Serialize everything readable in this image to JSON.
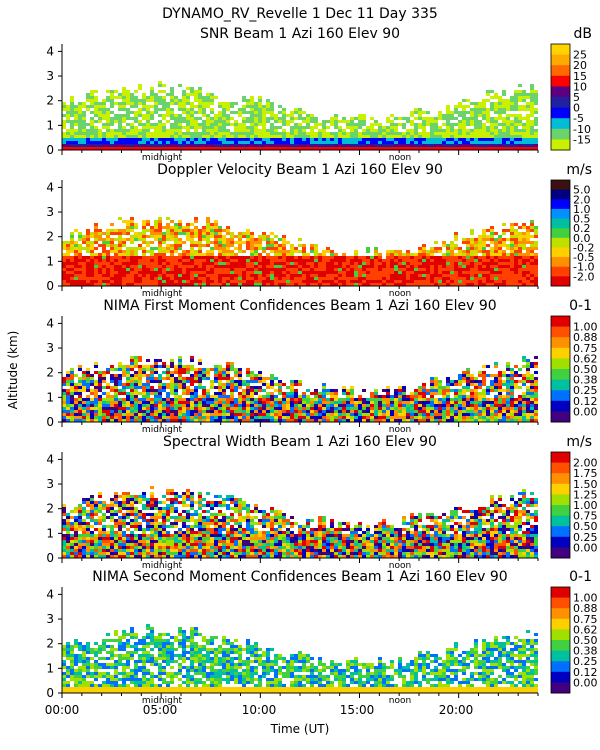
{
  "figure": {
    "title": "DYNAMO_RV_Revelle    1 Dec 11 Day 335",
    "ylabel": "Altitude (km)",
    "xlabel": "Time (UT)",
    "x_tick_labels": [
      "00:00",
      "05:00",
      "10:00",
      "15:00",
      "20:00"
    ],
    "annotations": {
      "midnight": "midnight",
      "noon": "noon"
    }
  },
  "chart_data": [
    {
      "type": "heatmap",
      "title": "SNR Beam 1 Azi 160 Elev 90",
      "unit": "dB",
      "xlim": [
        0,
        24
      ],
      "ylim": [
        0,
        4.3
      ],
      "y_ticks": [
        0,
        1,
        2,
        3,
        4
      ],
      "colorbar_labels": [
        "25",
        "20",
        "15",
        "10",
        "5",
        "0",
        "-5",
        "-10",
        "-15"
      ],
      "colorbar_colors": [
        "#ffd400",
        "#ffaa00",
        "#ff6a00",
        "#ff0000",
        "#5a0080",
        "#2020a0",
        "#0000ff",
        "#00bcd4",
        "#6bd36b",
        "#c8f000"
      ],
      "profile": {
        "top_km": 2.6,
        "core_top_km": 0.8
      }
    },
    {
      "type": "heatmap",
      "title": "Doppler Velocity Beam 1 Azi 160 Elev 90",
      "unit": "m/s",
      "xlim": [
        0,
        24
      ],
      "ylim": [
        0,
        4.3
      ],
      "y_ticks": [
        0,
        1,
        2,
        3,
        4
      ],
      "colorbar_labels": [
        "5.0",
        "2.0",
        "1.0",
        "0.5",
        "0.2",
        "0.0",
        "-0.2",
        "-0.5",
        "-1.0",
        "-2.0"
      ],
      "colorbar_colors": [
        "#3a1010",
        "#000080",
        "#0000ff",
        "#0090ff",
        "#00c0a0",
        "#40d040",
        "#c0e000",
        "#ffd000",
        "#ff9000",
        "#ff4000",
        "#e00000"
      ],
      "profile": {
        "top_km": 2.8,
        "core_top_km": 1.3
      }
    },
    {
      "type": "heatmap",
      "title": "NIMA First Moment Confidences Beam 1 Azi 160 Elev 90",
      "unit": "0-1",
      "xlim": [
        0,
        24
      ],
      "ylim": [
        0,
        4.3
      ],
      "y_ticks": [
        0,
        1,
        2,
        3,
        4
      ],
      "colorbar_labels": [
        "1.00",
        "0.88",
        "0.75",
        "0.62",
        "0.50",
        "0.38",
        "0.25",
        "0.12",
        "0.00"
      ],
      "colorbar_colors": [
        "#e00000",
        "#ff5000",
        "#ff9000",
        "#ffd000",
        "#a0e000",
        "#40d040",
        "#00c0a0",
        "#0070ff",
        "#0000c0",
        "#400080"
      ],
      "profile": {
        "top_km": 2.6,
        "core_top_km": 1.0
      }
    },
    {
      "type": "heatmap",
      "title": "Spectral Width Beam 1 Azi 160 Elev 90",
      "unit": "m/s",
      "xlim": [
        0,
        24
      ],
      "ylim": [
        0,
        4.3
      ],
      "y_ticks": [
        0,
        1,
        2,
        3,
        4
      ],
      "colorbar_labels": [
        "2.00",
        "1.75",
        "1.50",
        "1.25",
        "1.00",
        "0.75",
        "0.50",
        "0.25",
        "0.00"
      ],
      "colorbar_colors": [
        "#e00000",
        "#ff5000",
        "#ff9000",
        "#ffd000",
        "#a0e000",
        "#40d040",
        "#00c0a0",
        "#0070ff",
        "#0000c0",
        "#400080"
      ],
      "profile": {
        "top_km": 2.8,
        "core_top_km": 1.0
      }
    },
    {
      "type": "heatmap",
      "title": "NIMA Second Moment Confidences Beam 1 Azi 160 Elev 90",
      "unit": "0-1",
      "xlim": [
        0,
        24
      ],
      "ylim": [
        0,
        4.3
      ],
      "y_ticks": [
        0,
        1,
        2,
        3,
        4
      ],
      "colorbar_labels": [
        "1.00",
        "0.88",
        "0.75",
        "0.62",
        "0.50",
        "0.38",
        "0.25",
        "0.12",
        "0.00"
      ],
      "colorbar_colors": [
        "#e00000",
        "#ff5000",
        "#ff9000",
        "#ffd000",
        "#a0e000",
        "#40d040",
        "#00c0a0",
        "#0070ff",
        "#0000c0",
        "#400080"
      ],
      "profile": {
        "top_km": 2.6,
        "core_top_km": 0.3
      }
    }
  ]
}
